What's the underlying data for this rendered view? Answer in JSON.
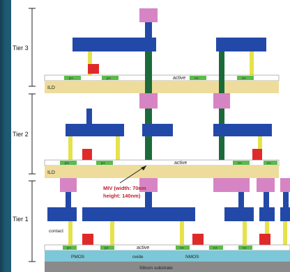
{
  "tiers": {
    "tier3": "Tier 3",
    "tier2": "Tier 2",
    "tier1": "Tier 1"
  },
  "layers": {
    "ild": "ILD",
    "active": "active",
    "pplus": "p+",
    "nplus": "n+"
  },
  "miv_annotation": {
    "line1": "MIV (width: 70nm",
    "line2": "height: 140nm)"
  },
  "bottom": {
    "contact": "contact",
    "pmos": "PMOS",
    "oxide": "oxide",
    "nmos": "NMOS",
    "active": "active",
    "substrate": "Silicon substrate"
  },
  "colors": {
    "metal": "#2349a8",
    "via_pad": "#d784c4",
    "contact": "#e6e24a",
    "miv": "#1c6a3a",
    "gate": "#e02a2a",
    "diffusion": "#5bbb4a",
    "ild": "#eedc9c",
    "substrate": "#8a8a8a",
    "bottom_active": "#7cc8d8"
  }
}
